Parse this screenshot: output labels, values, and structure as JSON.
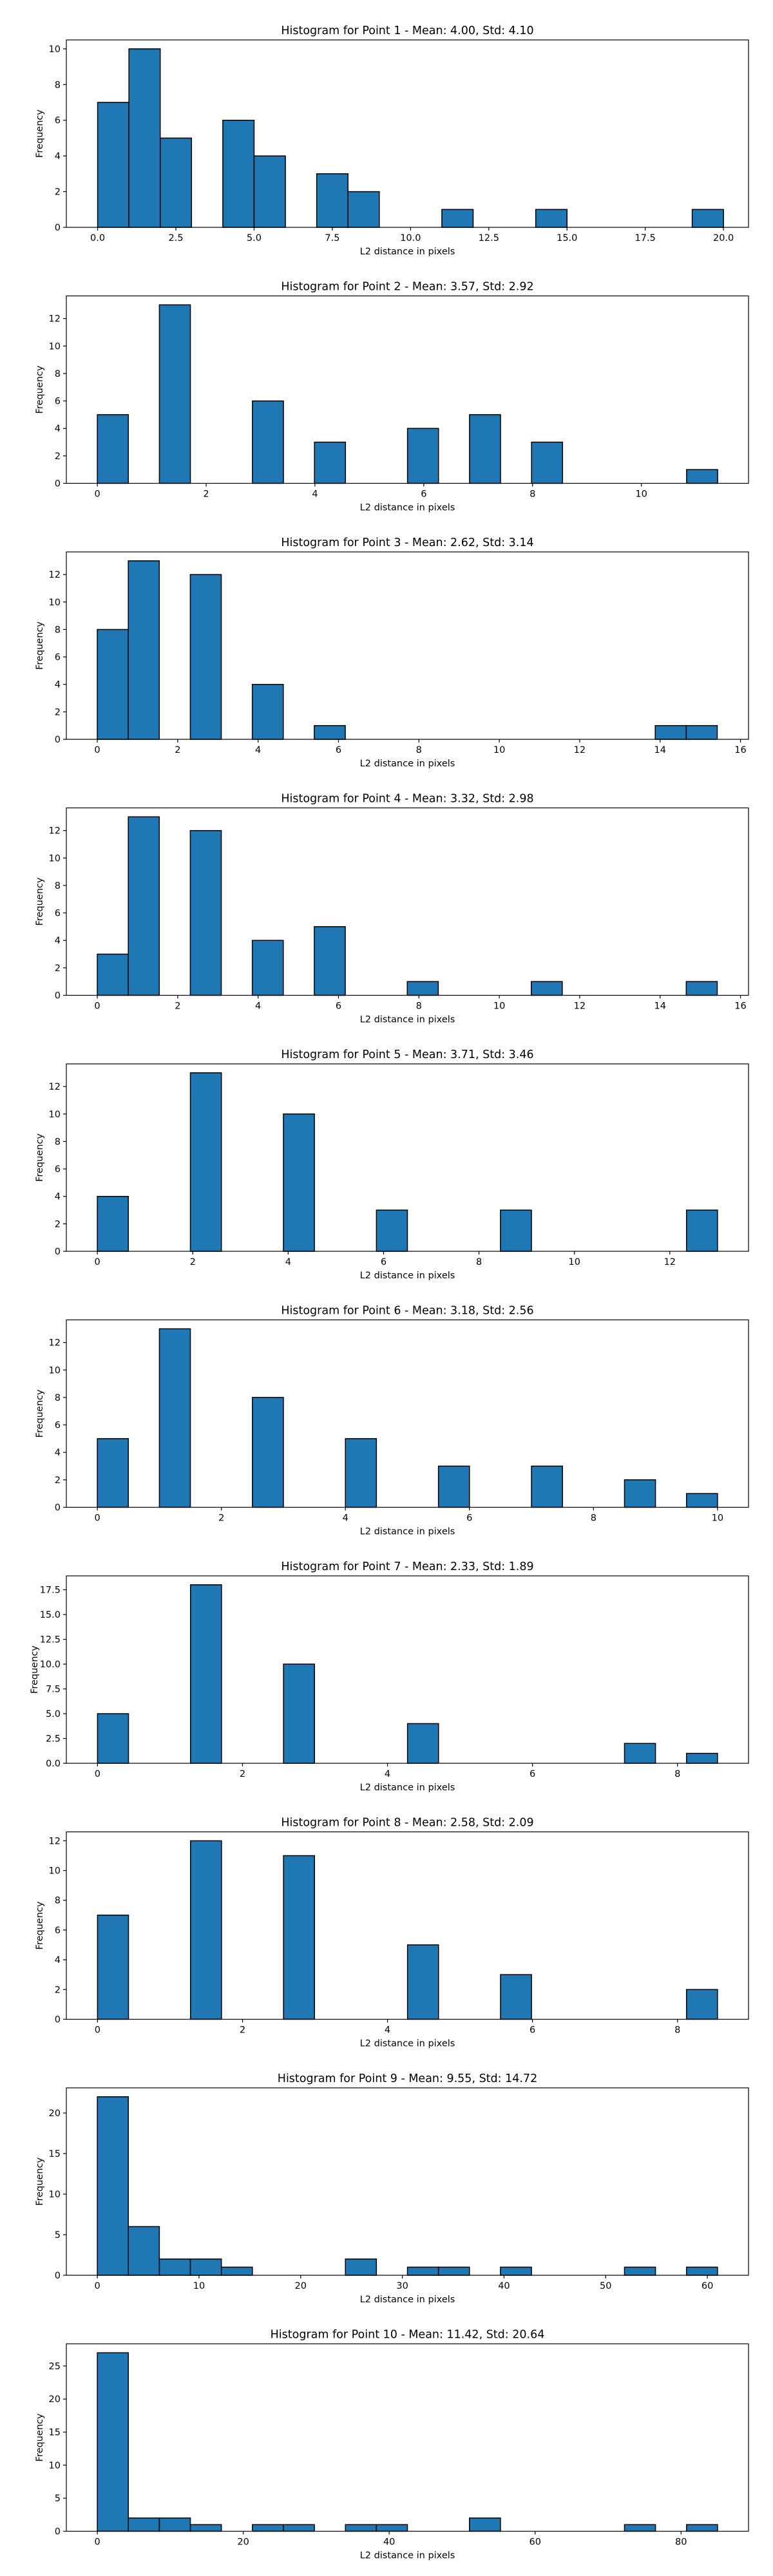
{
  "chart_data": [
    {
      "type": "bar",
      "title": "Histogram for Point 1 - Mean: 4.00, Std: 4.10",
      "xlabel": "L2 distance in pixels",
      "ylabel": "Frequency",
      "xlim": [
        -1.0,
        20.8
      ],
      "ylim": [
        0,
        10.5
      ],
      "xticks": [
        0.0,
        2.5,
        5.0,
        7.5,
        10.0,
        12.5,
        15.0,
        17.5,
        20.0
      ],
      "xtick_labels": [
        "0.0",
        "2.5",
        "5.0",
        "7.5",
        "10.0",
        "12.5",
        "15.0",
        "17.5",
        "20.0"
      ],
      "yticks": [
        0,
        2,
        4,
        6,
        8,
        10
      ],
      "bins": {
        "start": 0.0,
        "width": 1.0,
        "values": [
          7,
          10,
          5,
          0,
          6,
          4,
          0,
          3,
          2,
          0,
          0,
          1,
          0,
          0,
          1,
          0,
          0,
          0,
          0,
          1
        ]
      }
    },
    {
      "type": "bar",
      "title": "Histogram for Point 2 - Mean: 3.57, Std: 2.92",
      "xlabel": "L2 distance in pixels",
      "ylabel": "Frequency",
      "xlim": [
        -0.57,
        11.97
      ],
      "ylim": [
        0,
        13.65
      ],
      "xticks": [
        0,
        2,
        4,
        6,
        8,
        10
      ],
      "xtick_labels": [
        "0",
        "2",
        "4",
        "6",
        "8",
        "10"
      ],
      "yticks": [
        0,
        2,
        4,
        6,
        8,
        10,
        12
      ],
      "bins": {
        "start": 0.0,
        "width": 0.5701,
        "values": [
          5,
          0,
          13,
          0,
          0,
          6,
          0,
          3,
          0,
          0,
          4,
          0,
          5,
          0,
          3,
          0,
          0,
          0,
          0,
          1
        ]
      }
    },
    {
      "type": "bar",
      "title": "Histogram for Point 3 - Mean: 2.62, Std: 3.14",
      "xlabel": "L2 distance in pixels",
      "ylabel": "Frequency",
      "xlim": [
        -0.77,
        16.2
      ],
      "ylim": [
        0,
        13.65
      ],
      "xticks": [
        0,
        2,
        4,
        6,
        8,
        10,
        12,
        14,
        16
      ],
      "xtick_labels": [
        "0",
        "2",
        "4",
        "6",
        "8",
        "10",
        "12",
        "14",
        "16"
      ],
      "yticks": [
        0,
        2,
        4,
        6,
        8,
        10,
        12
      ],
      "bins": {
        "start": 0.0,
        "width": 0.7711,
        "values": [
          8,
          13,
          0,
          12,
          0,
          4,
          0,
          1,
          0,
          0,
          0,
          0,
          0,
          0,
          0,
          0,
          0,
          0,
          1,
          1
        ]
      }
    },
    {
      "type": "bar",
      "title": "Histogram for Point 4 - Mean: 3.32, Std: 2.98",
      "xlabel": "L2 distance in pixels",
      "ylabel": "Frequency",
      "xlim": [
        -0.77,
        16.2
      ],
      "ylim": [
        0,
        13.65
      ],
      "xticks": [
        0,
        2,
        4,
        6,
        8,
        10,
        12,
        14,
        16
      ],
      "xtick_labels": [
        "0",
        "2",
        "4",
        "6",
        "8",
        "10",
        "12",
        "14",
        "16"
      ],
      "yticks": [
        0,
        2,
        4,
        6,
        8,
        10,
        12
      ],
      "bins": {
        "start": 0.0,
        "width": 0.7711,
        "values": [
          3,
          13,
          0,
          12,
          0,
          4,
          0,
          5,
          0,
          0,
          1,
          0,
          0,
          0,
          1,
          0,
          0,
          0,
          0,
          1
        ]
      }
    },
    {
      "type": "bar",
      "title": "Histogram for Point 5 - Mean: 3.71, Std: 3.46",
      "xlabel": "L2 distance in pixels",
      "ylabel": "Frequency",
      "xlim": [
        -0.65,
        13.65
      ],
      "ylim": [
        0,
        13.65
      ],
      "xticks": [
        0,
        2,
        4,
        6,
        8,
        10,
        12
      ],
      "xtick_labels": [
        "0",
        "2",
        "4",
        "6",
        "8",
        "10",
        "12"
      ],
      "yticks": [
        0,
        2,
        4,
        6,
        8,
        10,
        12
      ],
      "bins": {
        "start": 0.0,
        "width": 0.65,
        "values": [
          4,
          0,
          0,
          13,
          0,
          0,
          10,
          0,
          0,
          3,
          0,
          0,
          0,
          3,
          0,
          0,
          0,
          0,
          0,
          3
        ]
      }
    },
    {
      "type": "bar",
      "title": "Histogram for Point 6 - Mean: 3.18, Std: 2.56",
      "xlabel": "L2 distance in pixels",
      "ylabel": "Frequency",
      "xlim": [
        -0.5,
        10.5
      ],
      "ylim": [
        0,
        13.65
      ],
      "xticks": [
        0,
        2,
        4,
        6,
        8,
        10
      ],
      "xtick_labels": [
        "0",
        "2",
        "4",
        "6",
        "8",
        "10"
      ],
      "yticks": [
        0,
        2,
        4,
        6,
        8,
        10,
        12
      ],
      "bins": {
        "start": 0.0,
        "width": 0.5,
        "values": [
          5,
          0,
          13,
          0,
          0,
          8,
          0,
          0,
          5,
          0,
          0,
          3,
          0,
          0,
          3,
          0,
          0,
          2,
          0,
          1
        ]
      }
    },
    {
      "type": "bar",
      "title": "Histogram for Point 7 - Mean: 2.33, Std: 1.89",
      "xlabel": "L2 distance in pixels",
      "ylabel": "Frequency",
      "xlim": [
        -0.43,
        8.98
      ],
      "ylim": [
        0,
        18.9
      ],
      "xticks": [
        0,
        2,
        4,
        6,
        8
      ],
      "xtick_labels": [
        "0",
        "2",
        "4",
        "6",
        "8"
      ],
      "yticks": [
        0.0,
        2.5,
        5.0,
        7.5,
        10.0,
        12.5,
        15.0,
        17.5
      ],
      "ytick_labels": [
        "0.0",
        "2.5",
        "5.0",
        "7.5",
        "10.0",
        "12.5",
        "15.0",
        "17.5"
      ],
      "bins": {
        "start": 0.0,
        "width": 0.4276,
        "values": [
          5,
          0,
          0,
          18,
          0,
          0,
          10,
          0,
          0,
          0,
          4,
          0,
          0,
          0,
          0,
          0,
          0,
          2,
          0,
          1
        ]
      }
    },
    {
      "type": "bar",
      "title": "Histogram for Point 8 - Mean: 2.58, Std: 2.09",
      "xlabel": "L2 distance in pixels",
      "ylabel": "Frequency",
      "xlim": [
        -0.43,
        8.98
      ],
      "ylim": [
        0,
        12.6
      ],
      "xticks": [
        0,
        2,
        4,
        6,
        8
      ],
      "xtick_labels": [
        "0",
        "2",
        "4",
        "6",
        "8"
      ],
      "yticks": [
        0,
        2,
        4,
        6,
        8,
        10,
        12
      ],
      "bins": {
        "start": 0.0,
        "width": 0.4276,
        "values": [
          7,
          0,
          0,
          12,
          0,
          0,
          11,
          0,
          0,
          0,
          5,
          0,
          0,
          3,
          0,
          0,
          0,
          0,
          0,
          2
        ]
      }
    },
    {
      "type": "bar",
      "title": "Histogram for Point 9 - Mean: 9.55, Std: 14.72",
      "xlabel": "L2 distance in pixels",
      "ylabel": "Frequency",
      "xlim": [
        -3.05,
        64.05
      ],
      "ylim": [
        0,
        23.1
      ],
      "xticks": [
        0,
        10,
        20,
        30,
        40,
        50,
        60
      ],
      "xtick_labels": [
        "0",
        "10",
        "20",
        "30",
        "40",
        "50",
        "60"
      ],
      "yticks": [
        0,
        5,
        10,
        15,
        20
      ],
      "bins": {
        "start": 0.0,
        "width": 3.05,
        "values": [
          22,
          6,
          2,
          2,
          1,
          0,
          0,
          0,
          2,
          0,
          1,
          1,
          0,
          1,
          0,
          0,
          0,
          1,
          0,
          1
        ]
      }
    },
    {
      "type": "bar",
      "title": "Histogram for Point 10 - Mean: 11.42, Std: 20.64",
      "xlabel": "L2 distance in pixels",
      "ylabel": "Frequency",
      "xlim": [
        -4.25,
        89.25
      ],
      "ylim": [
        0,
        28.35
      ],
      "xticks": [
        0,
        20,
        40,
        60,
        80
      ],
      "xtick_labels": [
        "0",
        "20",
        "40",
        "60",
        "80"
      ],
      "yticks": [
        0,
        5,
        10,
        15,
        20,
        25
      ],
      "bins": {
        "start": 0.0,
        "width": 4.25,
        "values": [
          27,
          2,
          2,
          1,
          0,
          1,
          1,
          0,
          1,
          1,
          0,
          0,
          2,
          0,
          0,
          0,
          0,
          1,
          0,
          1
        ]
      }
    }
  ],
  "style": {
    "bar_fill": "#1f77b4",
    "bar_edge": "#000000",
    "axis_color": "#000000",
    "background": "#ffffff"
  }
}
